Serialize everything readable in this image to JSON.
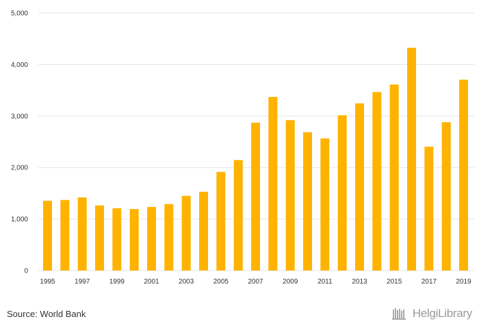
{
  "chart_data": {
    "type": "bar",
    "categories": [
      "1995",
      "1996",
      "1997",
      "1998",
      "1999",
      "2000",
      "2001",
      "2002",
      "2003",
      "2004",
      "2005",
      "2006",
      "2007",
      "2008",
      "2009",
      "2010",
      "2011",
      "2012",
      "2013",
      "2014",
      "2015",
      "2016",
      "2017",
      "2018",
      "2019"
    ],
    "x_tick_labels": [
      "1995",
      "1997",
      "1999",
      "2001",
      "2003",
      "2005",
      "2007",
      "2009",
      "2011",
      "2013",
      "2015",
      "2017",
      "2019"
    ],
    "values": [
      1355,
      1370,
      1420,
      1265,
      1210,
      1195,
      1235,
      1290,
      1450,
      1530,
      1915,
      2145,
      2870,
      3370,
      2920,
      2685,
      2565,
      3015,
      3245,
      3465,
      3610,
      4325,
      2405,
      2880,
      3705
    ],
    "ylim": [
      0,
      5000
    ],
    "y_ticks": [
      0,
      1000,
      2000,
      3000,
      4000,
      5000
    ],
    "y_tick_labels": [
      "0",
      "1,000",
      "2,000",
      "3,000",
      "4,000",
      "5,000"
    ],
    "bar_color": "#FFB300",
    "grid": true,
    "legend": "none"
  },
  "footer": {
    "source": "Source: World Bank",
    "brand": "HelgiLibrary",
    "brand_icon": "bookshelf-logo-icon",
    "brand_color": "#999999"
  }
}
